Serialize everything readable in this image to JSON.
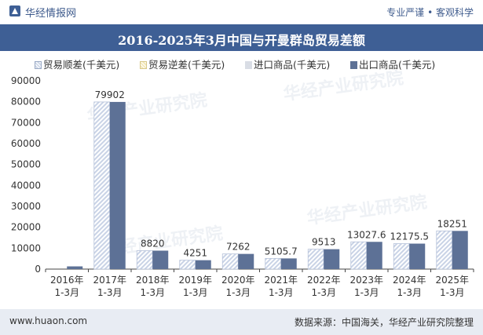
{
  "header": {
    "brand": "华经情报网",
    "tagline": "专业严谨 • 客观科学"
  },
  "chart_data": {
    "type": "bar",
    "title": "2016-2025年3月中国与开曼群岛贸易差额",
    "categories": [
      [
        "2016年",
        "1-3月"
      ],
      [
        "2017年",
        "1-3月"
      ],
      [
        "2018年",
        "1-3月"
      ],
      [
        "2019年",
        "1-3月"
      ],
      [
        "2020年",
        "1-3月"
      ],
      [
        "2021年",
        "1-3月"
      ],
      [
        "2022年",
        "1-3月"
      ],
      [
        "2023年",
        "1-3月"
      ],
      [
        "2024年",
        "1-3月"
      ],
      [
        "2025年",
        "1-3月"
      ]
    ],
    "series": [
      {
        "name": "贸易顺差(千美元)",
        "values": [
          null,
          79902,
          8820,
          4251,
          7262,
          5105.7,
          9513,
          13027.6,
          12175.5,
          18251
        ],
        "color": "#cfd8e8",
        "style": "hatched"
      },
      {
        "name": "贸易逆差(千美元)",
        "values": [
          null,
          null,
          null,
          null,
          null,
          null,
          null,
          null,
          null,
          null
        ],
        "color": "#f3e7b8",
        "style": "hatched"
      },
      {
        "name": "进口商品(千美元)",
        "values": [
          null,
          null,
          null,
          null,
          null,
          null,
          null,
          null,
          null,
          null
        ],
        "color": "#d9dde5",
        "style": "solid"
      },
      {
        "name": "出口商品(千美元)",
        "values": [
          1300,
          79902,
          8820,
          4251,
          7262,
          5105.7,
          9513,
          13027.6,
          12175.5,
          18251
        ],
        "color": "#5d7196",
        "style": "solid"
      }
    ],
    "data_labels": [
      "",
      "79902",
      "8820",
      "4251",
      "7262",
      "5105.7",
      "9513",
      "13027.6",
      "12175.5",
      "18251"
    ],
    "ylim": [
      0,
      90000
    ],
    "yticks": [
      0,
      10000,
      20000,
      30000,
      40000,
      50000,
      60000,
      70000,
      80000,
      90000
    ],
    "legend_position": "top",
    "grid": false
  },
  "footer": {
    "url": "www.huaon.com",
    "source": "数据来源：中国海关，华经产业研究院整理"
  },
  "watermark": "华经产业研究院"
}
